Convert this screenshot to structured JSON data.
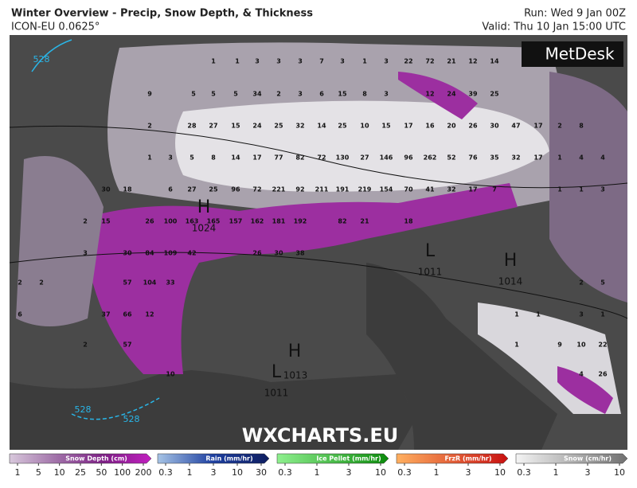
{
  "header": {
    "title": "Winter Overview - Precip, Snow Depth, & Thickness",
    "model": "ICON-EU 0.0625°",
    "run": "Run: Wed 9 Jan 00Z",
    "valid": "Valid: Thu 10 Jan 15:00 UTC",
    "logo": "MetDesk",
    "watermark": "WXCHARTS.EU"
  },
  "map": {
    "snow_depth_labels": [
      1,
      1,
      3,
      3,
      3,
      7,
      3,
      1,
      3,
      22,
      72,
      21,
      12,
      14,
      9,
      5,
      5,
      5,
      34,
      2,
      3,
      6,
      15,
      8,
      3,
      12,
      24,
      39,
      25,
      2,
      28,
      27,
      15,
      24,
      25,
      32,
      14,
      25,
      10,
      15,
      17,
      16,
      20,
      26,
      30,
      47,
      17,
      2,
      8,
      1,
      3,
      5,
      8,
      14,
      17,
      77,
      82,
      72,
      130,
      27,
      146,
      96,
      262,
      52,
      76,
      35,
      32,
      17,
      1,
      4,
      4,
      30,
      18,
      6,
      27,
      25,
      96,
      72,
      221,
      92,
      211,
      191,
      219,
      154,
      70,
      41,
      32,
      17,
      7,
      1,
      1,
      3,
      2,
      15,
      26,
      100,
      163,
      165,
      157,
      162,
      181,
      192,
      82,
      21,
      18,
      3,
      30,
      84,
      109,
      42,
      26,
      30,
      38,
      2,
      2,
      57,
      104,
      33,
      2,
      5,
      6,
      37,
      66,
      12,
      1,
      1,
      3,
      1,
      2,
      57,
      1,
      9,
      10,
      22,
      10,
      4,
      26
    ],
    "pressure_systems": [
      {
        "symbol": "H",
        "value": 1024
      },
      {
        "symbol": "L",
        "value": 1011
      },
      {
        "symbol": "H",
        "value": 1014
      },
      {
        "symbol": "H"
      },
      {
        "symbol": "L",
        "value": 1013
      }
    ],
    "extra_pressure_labels": [
      1011
    ],
    "thickness_labels": [
      528,
      528,
      528
    ]
  },
  "legend": [
    {
      "title": "Snow Depth (cm)",
      "ticks": [
        1,
        5,
        10,
        25,
        50,
        100,
        200
      ],
      "colors": [
        "#d8c8dc",
        "#a070a8",
        "#7d1f85",
        "#c21fc0"
      ]
    },
    {
      "title": "Rain (mm/hr)",
      "ticks": [
        0.3,
        1,
        3,
        10,
        30
      ],
      "colors": [
        "#a7c4e6",
        "#1d3fa0",
        "#0f1e60"
      ]
    },
    {
      "title": "Ice Pellet (mm/hr)",
      "ticks": [
        0.3,
        1,
        3,
        10
      ],
      "colors": [
        "#8ff08f",
        "#0a8a0a"
      ]
    },
    {
      "title": "FrzR (mm/hr)",
      "ticks": [
        0.3,
        1,
        3,
        10
      ],
      "colors": [
        "#ffb060",
        "#c81010"
      ]
    },
    {
      "title": "Snow (cm/hr)",
      "ticks": [
        0.3,
        1,
        3,
        10
      ],
      "colors": [
        "#f4f4f4",
        "#707070"
      ]
    }
  ]
}
